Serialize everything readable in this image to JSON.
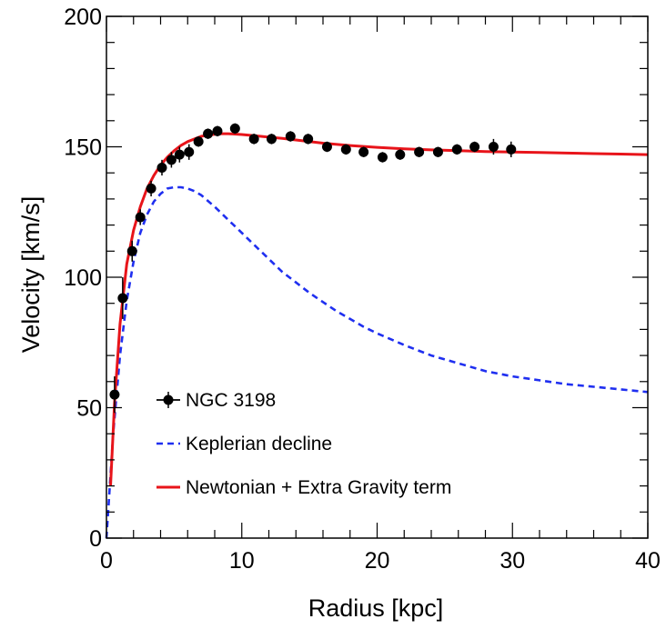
{
  "chart_data": {
    "type": "scatter",
    "title": "",
    "xlabel": "Radius [kpc]",
    "ylabel": "Velocity [km/s]",
    "xlim": [
      0,
      40
    ],
    "ylim": [
      0,
      200
    ],
    "xticks": [
      0,
      10,
      20,
      30,
      40
    ],
    "yticks": [
      0,
      50,
      100,
      150,
      200
    ],
    "grid": false,
    "legend_position": "lower-left",
    "series": [
      {
        "name": "NGC 3198",
        "kind": "points-with-errorbars",
        "color": "#000000",
        "points": [
          {
            "x": 0.6,
            "y": 55,
            "err": 7
          },
          {
            "x": 1.2,
            "y": 92,
            "err": 8
          },
          {
            "x": 1.9,
            "y": 110,
            "err": 4
          },
          {
            "x": 2.5,
            "y": 123,
            "err": 3
          },
          {
            "x": 3.3,
            "y": 134,
            "err": 3
          },
          {
            "x": 4.1,
            "y": 142,
            "err": 3
          },
          {
            "x": 4.8,
            "y": 145,
            "err": 3
          },
          {
            "x": 5.4,
            "y": 147,
            "err": 3
          },
          {
            "x": 6.1,
            "y": 148,
            "err": 3
          },
          {
            "x": 6.8,
            "y": 152,
            "err": 2
          },
          {
            "x": 7.5,
            "y": 155,
            "err": 2
          },
          {
            "x": 8.2,
            "y": 156,
            "err": 2
          },
          {
            "x": 9.5,
            "y": 157,
            "err": 2
          },
          {
            "x": 10.9,
            "y": 153,
            "err": 2
          },
          {
            "x": 12.2,
            "y": 153,
            "err": 2
          },
          {
            "x": 13.6,
            "y": 154,
            "err": 2
          },
          {
            "x": 14.9,
            "y": 153,
            "err": 2
          },
          {
            "x": 16.3,
            "y": 150,
            "err": 2
          },
          {
            "x": 17.7,
            "y": 149,
            "err": 2
          },
          {
            "x": 19.0,
            "y": 148,
            "err": 2
          },
          {
            "x": 20.4,
            "y": 146,
            "err": 2
          },
          {
            "x": 21.7,
            "y": 147,
            "err": 2
          },
          {
            "x": 23.1,
            "y": 148,
            "err": 2
          },
          {
            "x": 24.5,
            "y": 148,
            "err": 2
          },
          {
            "x": 25.9,
            "y": 149,
            "err": 2
          },
          {
            "x": 27.2,
            "y": 150,
            "err": 2
          },
          {
            "x": 28.6,
            "y": 150,
            "err": 3
          },
          {
            "x": 29.9,
            "y": 149,
            "err": 3
          }
        ]
      },
      {
        "name": "Keplerian decline",
        "kind": "dashed-line",
        "color": "#1f2ff0",
        "x": [
          0,
          0.5,
          1,
          1.5,
          2,
          2.5,
          3,
          3.5,
          4,
          4.5,
          5,
          5.5,
          6,
          6.5,
          7,
          8,
          9,
          10,
          11,
          12,
          13,
          14,
          15,
          16,
          17,
          18,
          19,
          20,
          22,
          24,
          26,
          28,
          30,
          32,
          34,
          36,
          38,
          40
        ],
        "y": [
          0,
          40,
          70,
          91,
          106,
          117,
          124,
          129,
          132,
          134,
          134.5,
          134.5,
          134,
          133,
          131.5,
          127,
          122,
          117,
          112,
          107,
          102,
          98,
          94,
          90.5,
          87,
          84,
          81,
          78.5,
          74,
          70,
          67,
          64,
          62,
          60.5,
          59,
          58,
          57,
          56
        ]
      },
      {
        "name": "Newtonian + Extra Gravity term",
        "kind": "solid-line",
        "color": "#e8141a",
        "x": [
          0.3,
          0.6,
          1,
          1.5,
          2,
          2.5,
          3,
          3.5,
          4,
          4.5,
          5,
          5.5,
          6,
          6.5,
          7,
          7.5,
          8,
          8.5,
          9,
          10,
          11,
          12,
          13,
          14,
          15,
          16,
          18,
          20,
          22,
          24,
          26,
          28,
          30,
          32,
          34,
          36,
          38,
          40
        ],
        "y": [
          20,
          52,
          82,
          105,
          118,
          127,
          134,
          139,
          143,
          146,
          148.5,
          150.5,
          152,
          153,
          154,
          154.5,
          154.8,
          155,
          155,
          154.7,
          154.2,
          153.7,
          153.2,
          152.6,
          152,
          151.4,
          150.5,
          149.8,
          149.2,
          148.8,
          148.5,
          148.2,
          148,
          147.8,
          147.6,
          147.4,
          147.2,
          147
        ]
      }
    ]
  }
}
